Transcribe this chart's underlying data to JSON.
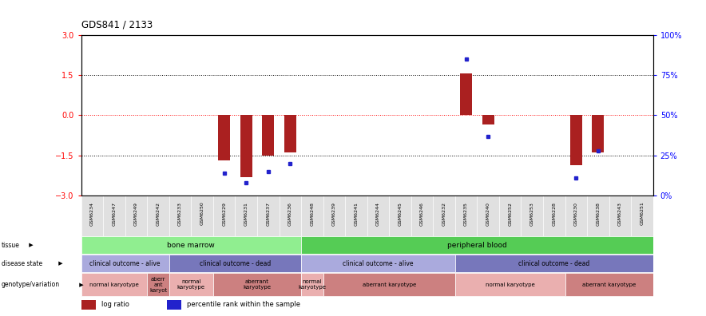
{
  "title": "GDS841 / 2133",
  "samples": [
    "GSM6234",
    "GSM6247",
    "GSM6249",
    "GSM6242",
    "GSM6233",
    "GSM6250",
    "GSM6229",
    "GSM6231",
    "GSM6237",
    "GSM6236",
    "GSM6248",
    "GSM6239",
    "GSM6241",
    "GSM6244",
    "GSM6245",
    "GSM6246",
    "GSM6232",
    "GSM6235",
    "GSM6240",
    "GSM6252",
    "GSM6253",
    "GSM6228",
    "GSM6230",
    "GSM6238",
    "GSM6243",
    "GSM6251"
  ],
  "log_ratio": [
    0,
    0,
    0,
    0,
    0,
    0,
    -1.7,
    -2.3,
    -1.5,
    -1.4,
    0,
    0,
    0,
    0,
    0,
    0,
    0,
    1.55,
    -0.35,
    0,
    0,
    0,
    -1.85,
    -1.4,
    0,
    0
  ],
  "percentile": [
    null,
    null,
    null,
    null,
    null,
    null,
    14,
    8,
    15,
    20,
    null,
    null,
    null,
    null,
    null,
    null,
    null,
    85,
    37,
    null,
    null,
    null,
    11,
    28,
    null,
    null
  ],
  "ylim": [
    -3,
    3
  ],
  "y_left_ticks": [
    -3,
    -1.5,
    0,
    1.5,
    3
  ],
  "y_right_ticks": [
    0,
    25,
    50,
    75,
    100
  ],
  "dotted_lines_black": [
    1.5,
    -1.5
  ],
  "tissue_blocks": [
    {
      "label": "bone marrow",
      "start": 0,
      "end": 10,
      "color": "#90EE90"
    },
    {
      "label": "peripheral blood",
      "start": 10,
      "end": 26,
      "color": "#55CC55"
    }
  ],
  "disease_blocks": [
    {
      "label": "clinical outcome - alive",
      "start": 0,
      "end": 4,
      "color": "#AAAADD"
    },
    {
      "label": "clinical outcome - dead",
      "start": 4,
      "end": 10,
      "color": "#7777BB"
    },
    {
      "label": "clinical outcome - alive",
      "start": 10,
      "end": 17,
      "color": "#AAAADD"
    },
    {
      "label": "clinical outcome - dead",
      "start": 17,
      "end": 26,
      "color": "#7777BB"
    }
  ],
  "geno_blocks": [
    {
      "label": "normal karyotype",
      "start": 0,
      "end": 3,
      "color": "#EAAFAF"
    },
    {
      "label": "aberr\nant\nkaryot",
      "start": 3,
      "end": 4,
      "color": "#CC8080"
    },
    {
      "label": "normal\nkaryotype",
      "start": 4,
      "end": 6,
      "color": "#EAAFAF"
    },
    {
      "label": "aberrant\nkaryotype",
      "start": 6,
      "end": 10,
      "color": "#CC8080"
    },
    {
      "label": "normal\nkaryotype",
      "start": 10,
      "end": 11,
      "color": "#EAAFAF"
    },
    {
      "label": "aberrant karyotype",
      "start": 11,
      "end": 17,
      "color": "#CC8080"
    },
    {
      "label": "normal karyotype",
      "start": 17,
      "end": 22,
      "color": "#EAAFAF"
    },
    {
      "label": "aberrant karyotype",
      "start": 22,
      "end": 26,
      "color": "#CC8080"
    }
  ],
  "bar_color": "#AA2020",
  "dot_color": "#2222CC",
  "legend_items": [
    {
      "color": "#AA2020",
      "label": "log ratio"
    },
    {
      "color": "#2222CC",
      "label": "percentile rank within the sample"
    }
  ]
}
